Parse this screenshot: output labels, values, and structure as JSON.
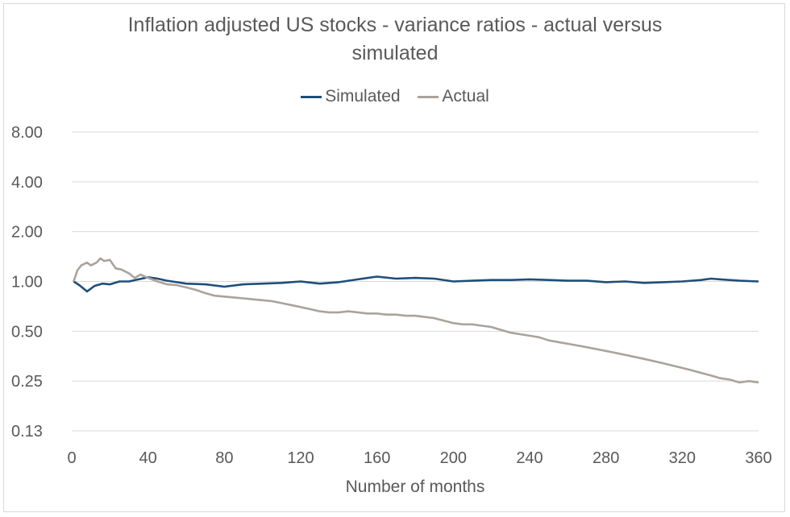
{
  "chart_data": {
    "type": "line",
    "title": "Inflation adjusted US stocks - variance ratios - actual versus simulated",
    "title_lines": [
      "Inflation adjusted US stocks - variance ratios - actual versus",
      "simulated"
    ],
    "xlabel": "Number of months",
    "ylabel": "",
    "xlim": [
      0,
      360
    ],
    "x_ticks": [
      0,
      40,
      80,
      120,
      160,
      200,
      240,
      280,
      320,
      360
    ],
    "x_tick_labels": [
      "0",
      "40",
      "80",
      "120",
      "160",
      "200",
      "240",
      "280",
      "320",
      "360"
    ],
    "y_scale": "log2",
    "y_ticks": [
      0.125,
      0.25,
      0.5,
      1,
      2,
      4,
      8
    ],
    "y_tick_labels": [
      "0.13",
      "0.25",
      "0.50",
      "1.00",
      "2.00",
      "4.00",
      "8.00"
    ],
    "ylim": [
      0.125,
      8
    ],
    "grid": true,
    "legend_position": "top",
    "series": [
      {
        "name": "Simulated",
        "color": "#1f4e79",
        "x": [
          1,
          4,
          8,
          12,
          16,
          20,
          25,
          30,
          35,
          40,
          45,
          50,
          55,
          60,
          70,
          80,
          90,
          100,
          110,
          120,
          130,
          140,
          150,
          155,
          160,
          170,
          180,
          190,
          200,
          210,
          220,
          230,
          240,
          250,
          260,
          270,
          280,
          290,
          300,
          310,
          320,
          330,
          335,
          340,
          350,
          360
        ],
        "y": [
          1.0,
          0.95,
          0.87,
          0.94,
          0.97,
          0.96,
          1.0,
          1.0,
          1.03,
          1.06,
          1.04,
          1.01,
          0.99,
          0.97,
          0.96,
          0.93,
          0.96,
          0.97,
          0.98,
          1.0,
          0.97,
          0.99,
          1.03,
          1.05,
          1.07,
          1.04,
          1.05,
          1.04,
          1.0,
          1.01,
          1.02,
          1.02,
          1.03,
          1.02,
          1.01,
          1.01,
          0.99,
          1.0,
          0.98,
          0.99,
          1.0,
          1.02,
          1.04,
          1.03,
          1.01,
          1.0
        ]
      },
      {
        "name": "Actual",
        "color": "#aba39b",
        "x": [
          1,
          3,
          5,
          8,
          10,
          13,
          15,
          17,
          20,
          23,
          26,
          30,
          33,
          36,
          40,
          45,
          50,
          55,
          60,
          65,
          70,
          75,
          80,
          85,
          90,
          95,
          100,
          105,
          110,
          115,
          120,
          125,
          130,
          135,
          140,
          145,
          150,
          155,
          160,
          165,
          170,
          175,
          180,
          185,
          190,
          195,
          200,
          205,
          210,
          215,
          220,
          225,
          230,
          235,
          240,
          245,
          250,
          255,
          260,
          265,
          270,
          275,
          280,
          285,
          290,
          295,
          300,
          305,
          310,
          315,
          320,
          325,
          330,
          335,
          340,
          345,
          350,
          355,
          360
        ],
        "y": [
          1.0,
          1.17,
          1.25,
          1.3,
          1.25,
          1.3,
          1.38,
          1.33,
          1.35,
          1.2,
          1.18,
          1.12,
          1.05,
          1.1,
          1.05,
          1.0,
          0.96,
          0.95,
          0.92,
          0.89,
          0.85,
          0.82,
          0.81,
          0.8,
          0.79,
          0.78,
          0.77,
          0.76,
          0.74,
          0.72,
          0.7,
          0.68,
          0.66,
          0.65,
          0.65,
          0.66,
          0.65,
          0.64,
          0.64,
          0.63,
          0.63,
          0.62,
          0.62,
          0.61,
          0.6,
          0.58,
          0.56,
          0.55,
          0.55,
          0.54,
          0.53,
          0.51,
          0.49,
          0.48,
          0.47,
          0.46,
          0.44,
          0.43,
          0.42,
          0.41,
          0.4,
          0.39,
          0.38,
          0.37,
          0.36,
          0.35,
          0.34,
          0.33,
          0.32,
          0.31,
          0.3,
          0.29,
          0.28,
          0.27,
          0.26,
          0.255,
          0.245,
          0.25,
          0.245
        ]
      }
    ]
  }
}
